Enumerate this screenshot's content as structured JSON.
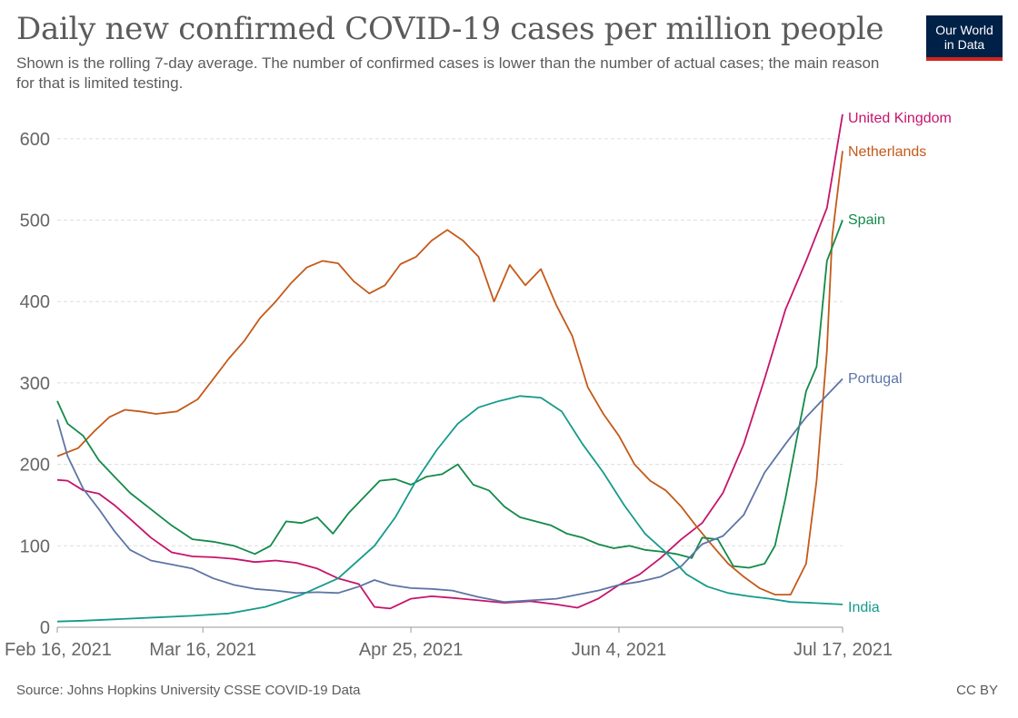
{
  "header": {
    "title": "Daily new confirmed COVID-19 cases per million people",
    "subtitle": "Shown is the rolling 7-day average. The number of confirmed cases is lower than the number of actual cases; the main reason for that is limited testing.",
    "logo_line1": "Our World",
    "logo_line2": "in Data"
  },
  "footer": {
    "source": "Source: Johns Hopkins University CSSE COVID-19 Data",
    "license": "CC BY"
  },
  "colors": {
    "United Kingdom": "#c6146c",
    "Netherlands": "#c45a1a",
    "Spain": "#138a4a",
    "Portugal": "#5d75a5",
    "India": "#159a8c",
    "logo_bg": "#002147",
    "logo_bar": "#ce261e"
  },
  "chart_data": {
    "type": "line",
    "title": "Daily new confirmed COVID-19 cases per million people",
    "xlabel": "",
    "ylabel": "",
    "x_range": [
      "2021-02-16",
      "2021-07-17"
    ],
    "ylim": [
      0,
      650
    ],
    "y_ticks": [
      0,
      100,
      200,
      300,
      400,
      500,
      600
    ],
    "x_ticks": [
      "Feb 16, 2021",
      "Mar 16, 2021",
      "Apr 25, 2021",
      "Jun 4, 2021",
      "Jul 17, 2021"
    ],
    "x_tick_dates": [
      "2021-02-16",
      "2021-03-16",
      "2021-04-25",
      "2021-06-04",
      "2021-07-17"
    ],
    "grid": "horizontal dashed",
    "legend": "inline labels at right end of lines",
    "series": [
      {
        "name": "United Kingdom",
        "points": [
          [
            "2021-02-16",
            181
          ],
          [
            "2021-02-18",
            180
          ],
          [
            "2021-02-21",
            168
          ],
          [
            "2021-02-24",
            164
          ],
          [
            "2021-02-27",
            150
          ],
          [
            "2021-03-02",
            133
          ],
          [
            "2021-03-06",
            110
          ],
          [
            "2021-03-10",
            92
          ],
          [
            "2021-03-14",
            87
          ],
          [
            "2021-03-18",
            86
          ],
          [
            "2021-03-22",
            84
          ],
          [
            "2021-03-26",
            80
          ],
          [
            "2021-03-30",
            82
          ],
          [
            "2021-04-03",
            79
          ],
          [
            "2021-04-07",
            72
          ],
          [
            "2021-04-11",
            60
          ],
          [
            "2021-04-15",
            53
          ],
          [
            "2021-04-18",
            25
          ],
          [
            "2021-04-21",
            23
          ],
          [
            "2021-04-25",
            35
          ],
          [
            "2021-04-29",
            38
          ],
          [
            "2021-05-03",
            36
          ],
          [
            "2021-05-08",
            33
          ],
          [
            "2021-05-13",
            30
          ],
          [
            "2021-05-18",
            32
          ],
          [
            "2021-05-23",
            28
          ],
          [
            "2021-05-27",
            24
          ],
          [
            "2021-05-31",
            35
          ],
          [
            "2021-06-04",
            52
          ],
          [
            "2021-06-08",
            65
          ],
          [
            "2021-06-12",
            85
          ],
          [
            "2021-06-16",
            108
          ],
          [
            "2021-06-20",
            128
          ],
          [
            "2021-06-24",
            165
          ],
          [
            "2021-06-28",
            225
          ],
          [
            "2021-07-02",
            305
          ],
          [
            "2021-07-06",
            390
          ],
          [
            "2021-07-10",
            450
          ],
          [
            "2021-07-14",
            515
          ],
          [
            "2021-07-17",
            630
          ]
        ]
      },
      {
        "name": "Netherlands",
        "points": [
          [
            "2021-02-16",
            210
          ],
          [
            "2021-02-20",
            220
          ],
          [
            "2021-02-23",
            240
          ],
          [
            "2021-02-26",
            258
          ],
          [
            "2021-03-01",
            267
          ],
          [
            "2021-03-04",
            265
          ],
          [
            "2021-03-07",
            262
          ],
          [
            "2021-03-11",
            265
          ],
          [
            "2021-03-15",
            280
          ],
          [
            "2021-03-18",
            305
          ],
          [
            "2021-03-21",
            330
          ],
          [
            "2021-03-24",
            352
          ],
          [
            "2021-03-27",
            380
          ],
          [
            "2021-03-30",
            400
          ],
          [
            "2021-04-02",
            423
          ],
          [
            "2021-04-05",
            442
          ],
          [
            "2021-04-08",
            450
          ],
          [
            "2021-04-11",
            447
          ],
          [
            "2021-04-14",
            425
          ],
          [
            "2021-04-17",
            410
          ],
          [
            "2021-04-20",
            420
          ],
          [
            "2021-04-23",
            446
          ],
          [
            "2021-04-26",
            455
          ],
          [
            "2021-04-29",
            475
          ],
          [
            "2021-05-02",
            488
          ],
          [
            "2021-05-05",
            475
          ],
          [
            "2021-05-08",
            455
          ],
          [
            "2021-05-11",
            400
          ],
          [
            "2021-05-14",
            445
          ],
          [
            "2021-05-17",
            420
          ],
          [
            "2021-05-20",
            440
          ],
          [
            "2021-05-23",
            395
          ],
          [
            "2021-05-26",
            358
          ],
          [
            "2021-05-29",
            295
          ],
          [
            "2021-06-01",
            262
          ],
          [
            "2021-06-04",
            235
          ],
          [
            "2021-06-07",
            200
          ],
          [
            "2021-06-10",
            180
          ],
          [
            "2021-06-13",
            168
          ],
          [
            "2021-06-16",
            148
          ],
          [
            "2021-06-19",
            123
          ],
          [
            "2021-06-22",
            100
          ],
          [
            "2021-06-25",
            78
          ],
          [
            "2021-06-28",
            62
          ],
          [
            "2021-07-01",
            48
          ],
          [
            "2021-07-04",
            40
          ],
          [
            "2021-07-07",
            40
          ],
          [
            "2021-07-10",
            78
          ],
          [
            "2021-07-12",
            180
          ],
          [
            "2021-07-14",
            340
          ],
          [
            "2021-07-15",
            480
          ],
          [
            "2021-07-17",
            585
          ]
        ]
      },
      {
        "name": "Spain",
        "points": [
          [
            "2021-02-16",
            278
          ],
          [
            "2021-02-18",
            250
          ],
          [
            "2021-02-21",
            235
          ],
          [
            "2021-02-24",
            205
          ],
          [
            "2021-02-27",
            185
          ],
          [
            "2021-03-02",
            165
          ],
          [
            "2021-03-06",
            145
          ],
          [
            "2021-03-10",
            125
          ],
          [
            "2021-03-14",
            108
          ],
          [
            "2021-03-18",
            105
          ],
          [
            "2021-03-22",
            100
          ],
          [
            "2021-03-26",
            90
          ],
          [
            "2021-03-29",
            100
          ],
          [
            "2021-04-01",
            130
          ],
          [
            "2021-04-04",
            128
          ],
          [
            "2021-04-07",
            135
          ],
          [
            "2021-04-10",
            115
          ],
          [
            "2021-04-13",
            140
          ],
          [
            "2021-04-16",
            160
          ],
          [
            "2021-04-19",
            180
          ],
          [
            "2021-04-22",
            182
          ],
          [
            "2021-04-25",
            175
          ],
          [
            "2021-04-28",
            185
          ],
          [
            "2021-05-01",
            188
          ],
          [
            "2021-05-04",
            200
          ],
          [
            "2021-05-07",
            175
          ],
          [
            "2021-05-10",
            168
          ],
          [
            "2021-05-13",
            148
          ],
          [
            "2021-05-16",
            135
          ],
          [
            "2021-05-19",
            130
          ],
          [
            "2021-05-22",
            125
          ],
          [
            "2021-05-25",
            115
          ],
          [
            "2021-05-28",
            110
          ],
          [
            "2021-05-31",
            102
          ],
          [
            "2021-06-03",
            97
          ],
          [
            "2021-06-06",
            100
          ],
          [
            "2021-06-09",
            95
          ],
          [
            "2021-06-12",
            93
          ],
          [
            "2021-06-15",
            90
          ],
          [
            "2021-06-18",
            85
          ],
          [
            "2021-06-20",
            110
          ],
          [
            "2021-06-23",
            108
          ],
          [
            "2021-06-26",
            75
          ],
          [
            "2021-06-29",
            73
          ],
          [
            "2021-07-02",
            78
          ],
          [
            "2021-07-04",
            100
          ],
          [
            "2021-07-06",
            158
          ],
          [
            "2021-07-08",
            225
          ],
          [
            "2021-07-10",
            290
          ],
          [
            "2021-07-12",
            320
          ],
          [
            "2021-07-14",
            450
          ],
          [
            "2021-07-17",
            500
          ]
        ]
      },
      {
        "name": "Portugal",
        "points": [
          [
            "2021-02-16",
            255
          ],
          [
            "2021-02-18",
            210
          ],
          [
            "2021-02-21",
            170
          ],
          [
            "2021-02-24",
            145
          ],
          [
            "2021-02-27",
            118
          ],
          [
            "2021-03-02",
            95
          ],
          [
            "2021-03-06",
            82
          ],
          [
            "2021-03-10",
            77
          ],
          [
            "2021-03-14",
            72
          ],
          [
            "2021-03-18",
            60
          ],
          [
            "2021-03-22",
            52
          ],
          [
            "2021-03-26",
            47
          ],
          [
            "2021-03-30",
            45
          ],
          [
            "2021-04-03",
            42
          ],
          [
            "2021-04-07",
            43
          ],
          [
            "2021-04-11",
            42
          ],
          [
            "2021-04-15",
            50
          ],
          [
            "2021-04-18",
            58
          ],
          [
            "2021-04-21",
            52
          ],
          [
            "2021-04-25",
            48
          ],
          [
            "2021-04-29",
            47
          ],
          [
            "2021-05-03",
            45
          ],
          [
            "2021-05-08",
            37
          ],
          [
            "2021-05-13",
            31
          ],
          [
            "2021-05-18",
            33
          ],
          [
            "2021-05-23",
            35
          ],
          [
            "2021-05-27",
            40
          ],
          [
            "2021-05-31",
            45
          ],
          [
            "2021-06-04",
            52
          ],
          [
            "2021-06-08",
            56
          ],
          [
            "2021-06-12",
            62
          ],
          [
            "2021-06-16",
            75
          ],
          [
            "2021-06-20",
            102
          ],
          [
            "2021-06-24",
            112
          ],
          [
            "2021-06-28",
            138
          ],
          [
            "2021-07-02",
            190
          ],
          [
            "2021-07-06",
            225
          ],
          [
            "2021-07-10",
            258
          ],
          [
            "2021-07-14",
            285
          ],
          [
            "2021-07-17",
            305
          ]
        ]
      },
      {
        "name": "India",
        "points": [
          [
            "2021-02-16",
            7
          ],
          [
            "2021-02-21",
            8
          ],
          [
            "2021-02-28",
            10
          ],
          [
            "2021-03-07",
            12
          ],
          [
            "2021-03-14",
            14
          ],
          [
            "2021-03-21",
            17
          ],
          [
            "2021-03-28",
            25
          ],
          [
            "2021-04-04",
            40
          ],
          [
            "2021-04-11",
            60
          ],
          [
            "2021-04-18",
            100
          ],
          [
            "2021-04-22",
            135
          ],
          [
            "2021-04-26",
            180
          ],
          [
            "2021-04-30",
            218
          ],
          [
            "2021-05-04",
            250
          ],
          [
            "2021-05-08",
            270
          ],
          [
            "2021-05-12",
            278
          ],
          [
            "2021-05-16",
            284
          ],
          [
            "2021-05-20",
            282
          ],
          [
            "2021-05-24",
            265
          ],
          [
            "2021-05-28",
            225
          ],
          [
            "2021-06-01",
            190
          ],
          [
            "2021-06-05",
            150
          ],
          [
            "2021-06-09",
            115
          ],
          [
            "2021-06-13",
            92
          ],
          [
            "2021-06-17",
            65
          ],
          [
            "2021-06-21",
            50
          ],
          [
            "2021-06-25",
            42
          ],
          [
            "2021-06-29",
            38
          ],
          [
            "2021-07-03",
            35
          ],
          [
            "2021-07-07",
            31
          ],
          [
            "2021-07-11",
            30
          ],
          [
            "2021-07-14",
            29
          ],
          [
            "2021-07-17",
            28
          ]
        ]
      }
    ]
  }
}
